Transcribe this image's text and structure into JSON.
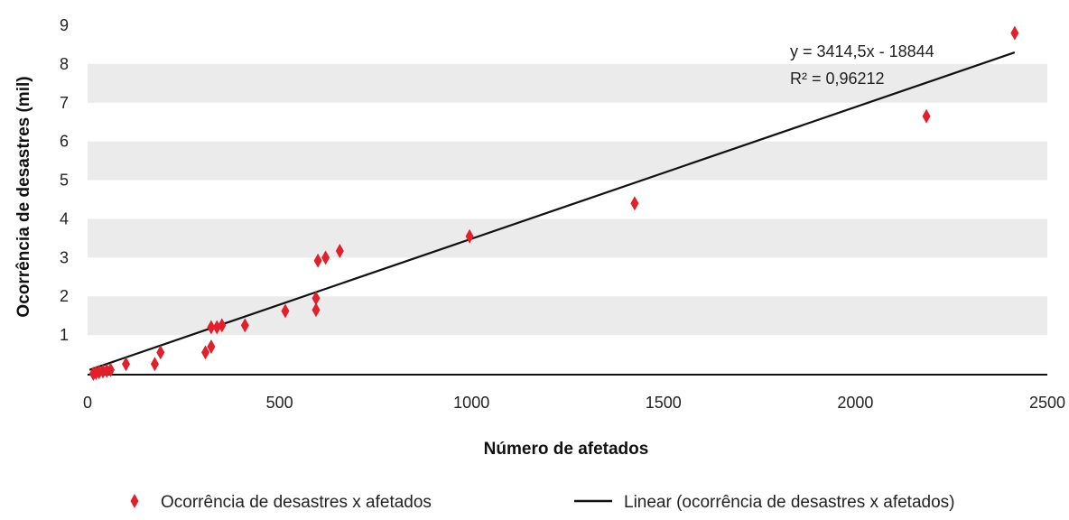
{
  "chart_data": {
    "type": "scatter",
    "xlabel": "Número de afetados",
    "ylabel": "Ocorrência de desastres (mil)",
    "xlim": [
      0,
      2500
    ],
    "ylim": [
      0,
      9
    ],
    "x_ticks": [
      0,
      500,
      1000,
      1500,
      2000,
      2500
    ],
    "y_ticks": [
      1,
      2,
      3,
      4,
      5,
      6,
      7,
      8,
      9
    ],
    "grid": "alternating horizontal bands",
    "colors": {
      "points": "#e0202a",
      "trendline": "#111111",
      "band": "#ebebeb"
    },
    "series": [
      {
        "name": "Ocorrência de desastres x afetados",
        "marker": "diamond",
        "points": [
          [
            15,
            0.0
          ],
          [
            22,
            0.02
          ],
          [
            30,
            0.04
          ],
          [
            40,
            0.06
          ],
          [
            50,
            0.08
          ],
          [
            60,
            0.1
          ],
          [
            100,
            0.25
          ],
          [
            175,
            0.25
          ],
          [
            190,
            0.55
          ],
          [
            307,
            0.55
          ],
          [
            322,
            0.7
          ],
          [
            322,
            1.2
          ],
          [
            337,
            1.2
          ],
          [
            350,
            1.25
          ],
          [
            410,
            1.25
          ],
          [
            515,
            1.62
          ],
          [
            595,
            1.65
          ],
          [
            595,
            1.95
          ],
          [
            600,
            2.92
          ],
          [
            620,
            3.0
          ],
          [
            657,
            3.17
          ],
          [
            995,
            3.55
          ],
          [
            1425,
            4.4
          ],
          [
            2185,
            6.65
          ],
          [
            2415,
            8.8
          ]
        ]
      }
    ],
    "trendline": {
      "name": "Linear (ocorrência de desastres x afetados)",
      "type": "linear",
      "start": [
        5,
        0.1
      ],
      "end": [
        2415,
        8.3
      ]
    },
    "annotations": [
      "y = 3414,5x - 18844",
      "R² = 0,96212"
    ],
    "legend_position": "bottom"
  }
}
